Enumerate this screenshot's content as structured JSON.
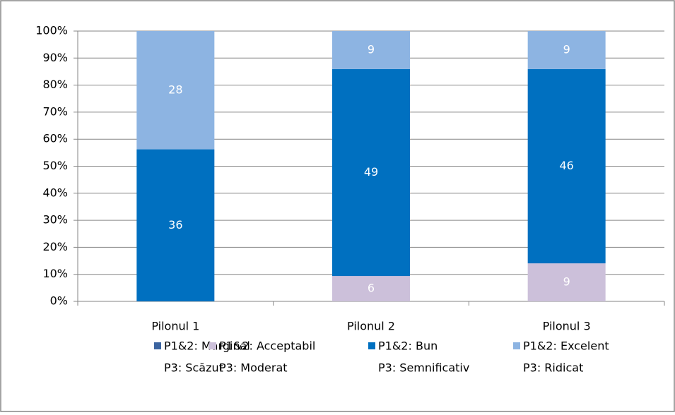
{
  "chart_data": {
    "type": "bar",
    "stacked": "percent",
    "categories": [
      "Pilonul 1",
      "Pilonul 2",
      "Pilonul 3"
    ],
    "series": [
      {
        "name": [
          "P1&2: Marginal",
          "P3: Scăzut"
        ],
        "color": "#3b64a0",
        "values": [
          null,
          null,
          null
        ]
      },
      {
        "name": [
          "P1&2: Acceptabil",
          "P3: Moderat"
        ],
        "color": "#ccc0da",
        "values": [
          null,
          6,
          9
        ]
      },
      {
        "name": [
          "P1&2: Bun",
          "P3: Semnificativ"
        ],
        "color": "#0070c0",
        "values": [
          36,
          49,
          46
        ]
      },
      {
        "name": [
          "P1&2: Excelent",
          "P3: Ridicat"
        ],
        "color": "#8db4e2",
        "values": [
          28,
          9,
          9
        ]
      }
    ],
    "ylim": [
      0,
      100
    ],
    "yticks": [
      {
        "value": 0,
        "label": "0%"
      },
      {
        "value": 10,
        "label": "10%"
      },
      {
        "value": 20,
        "label": "20%"
      },
      {
        "value": 30,
        "label": "30%"
      },
      {
        "value": 40,
        "label": "40%"
      },
      {
        "value": 50,
        "label": "50%"
      },
      {
        "value": 60,
        "label": "60%"
      },
      {
        "value": 70,
        "label": "70%"
      },
      {
        "value": 80,
        "label": "80%"
      },
      {
        "value": 90,
        "label": "90%"
      },
      {
        "value": 100,
        "label": "100%"
      }
    ],
    "grid": true,
    "legend": "bottom"
  }
}
